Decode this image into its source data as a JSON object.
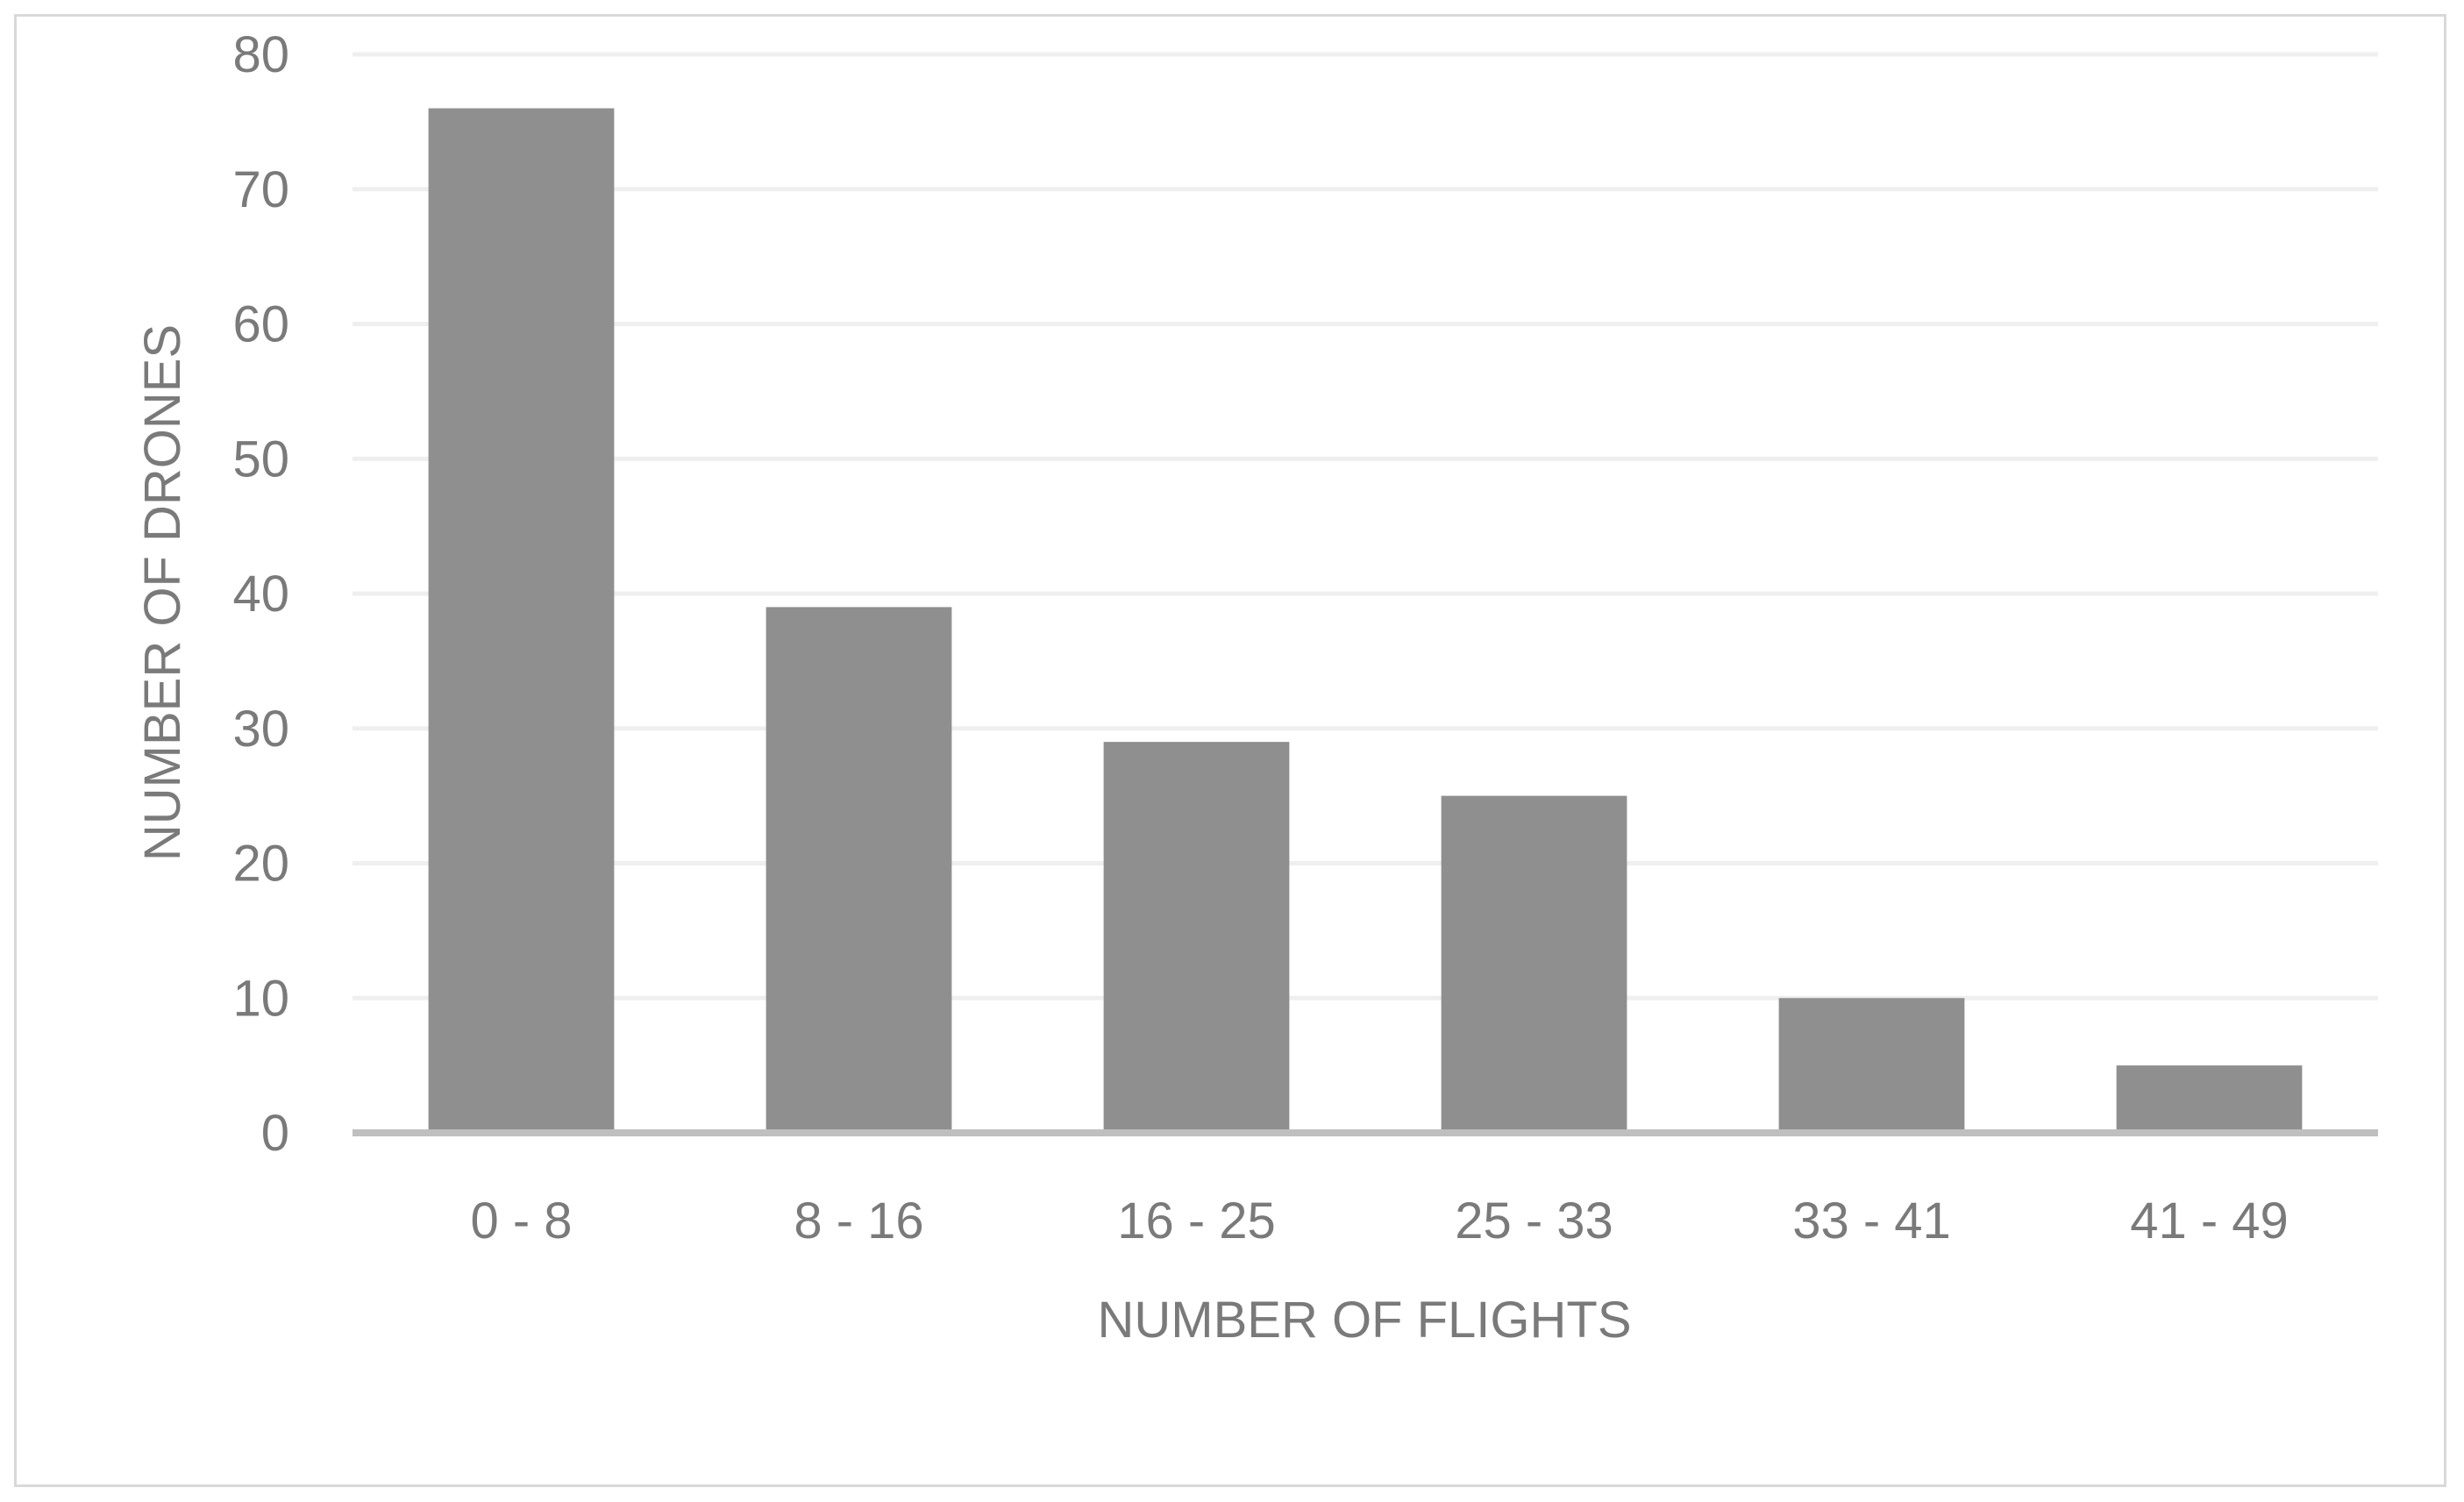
{
  "chart_data": {
    "type": "bar",
    "categories": [
      "0 - 8",
      "8 - 16",
      "16 - 25",
      "25 - 33",
      "33 - 41",
      "41 - 49"
    ],
    "values": [
      76,
      39,
      29,
      25,
      10,
      5
    ],
    "title": "",
    "xlabel": "NUMBER OF FLIGHTS",
    "ylabel": "NUMBER OF DRONES",
    "ylim": [
      0,
      80
    ],
    "yticks": [
      0,
      10,
      20,
      30,
      40,
      50,
      60,
      70,
      80
    ],
    "grid": true,
    "legend": "none",
    "colors": {
      "bar": "#8f8f8f",
      "grid": "#efefef",
      "axis": "#bfbfbf",
      "text": "#7a7a7a"
    }
  }
}
